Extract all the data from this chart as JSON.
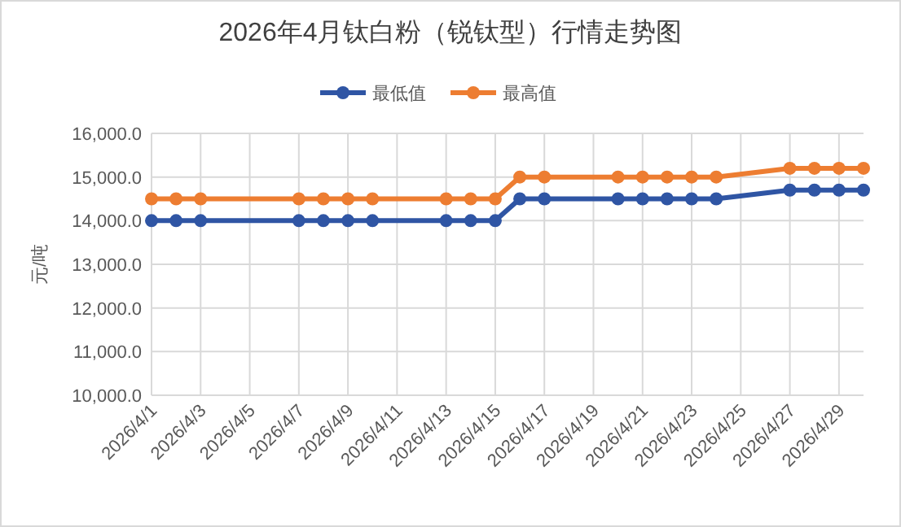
{
  "chart_data": {
    "type": "line",
    "title": "2026年4月钛白粉（锐钛型）行情走势图",
    "ylabel": "元/吨",
    "x": [
      "2026-04-01",
      "2026-04-02",
      "2026-04-03",
      "2026-04-07",
      "2026-04-08",
      "2026-04-09",
      "2026-04-10",
      "2026-04-13",
      "2026-04-14",
      "2026-04-15",
      "2026-04-16",
      "2026-04-17",
      "2026-04-20",
      "2026-04-21",
      "2026-04-22",
      "2026-04-23",
      "2026-04-24",
      "2026-04-27",
      "2026-04-28",
      "2026-04-29",
      "2026-04-30"
    ],
    "series": [
      {
        "name": "最低值",
        "color": "#2f55a4",
        "values": [
          14000,
          14000,
          14000,
          14000,
          14000,
          14000,
          14000,
          14000,
          14000,
          14000,
          14500,
          14500,
          14500,
          14500,
          14500,
          14500,
          14500,
          14700,
          14700,
          14700,
          14700
        ]
      },
      {
        "name": "最高值",
        "color": "#ed7d31",
        "values": [
          14500,
          14500,
          14500,
          14500,
          14500,
          14500,
          14500,
          14500,
          14500,
          14500,
          15000,
          15000,
          15000,
          15000,
          15000,
          15000,
          15000,
          15200,
          15200,
          15200,
          15200
        ]
      }
    ],
    "xlim": [
      "2026-04-01",
      "2026-04-30"
    ],
    "xticks": [
      {
        "value": "2026-04-01",
        "label": "2026/4/1"
      },
      {
        "value": "2026-04-03",
        "label": "2026/4/3"
      },
      {
        "value": "2026-04-05",
        "label": "2026/4/5"
      },
      {
        "value": "2026-04-07",
        "label": "2026/4/7"
      },
      {
        "value": "2026-04-09",
        "label": "2026/4/9"
      },
      {
        "value": "2026-04-11",
        "label": "2026/4/11"
      },
      {
        "value": "2026-04-13",
        "label": "2026/4/13"
      },
      {
        "value": "2026-04-15",
        "label": "2026/4/15"
      },
      {
        "value": "2026-04-17",
        "label": "2026/4/17"
      },
      {
        "value": "2026-04-19",
        "label": "2026/4/19"
      },
      {
        "value": "2026-04-21",
        "label": "2026/4/21"
      },
      {
        "value": "2026-04-23",
        "label": "2026/4/23"
      },
      {
        "value": "2026-04-25",
        "label": "2026/4/25"
      },
      {
        "value": "2026-04-27",
        "label": "2026/4/27"
      },
      {
        "value": "2026-04-29",
        "label": "2026/4/29"
      }
    ],
    "ylim": [
      10000,
      16000
    ],
    "yticks": [
      {
        "value": 10000,
        "label": "10,000.0"
      },
      {
        "value": 11000,
        "label": "11,000.0"
      },
      {
        "value": 12000,
        "label": "12,000.0"
      },
      {
        "value": 13000,
        "label": "13,000.0"
      },
      {
        "value": 14000,
        "label": "14,000.0"
      },
      {
        "value": 15000,
        "label": "15,000.0"
      },
      {
        "value": 16000,
        "label": "16,000.0"
      }
    ],
    "grid": true,
    "legend": "top",
    "marker": "circle",
    "line_style": "solid"
  }
}
